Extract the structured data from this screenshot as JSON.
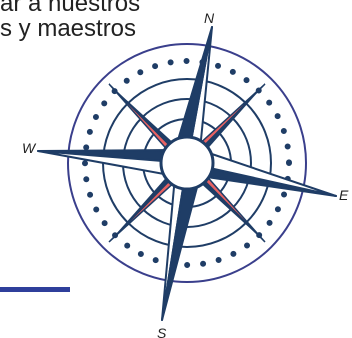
{
  "heading": {
    "line1": "ar a nuestros",
    "line2": "s y maestros"
  },
  "compass": {
    "north": "N",
    "south": "S",
    "east": "E",
    "west": "W"
  },
  "colors": {
    "navy": "#1f3d66",
    "coral": "#e86262",
    "ring": "#3a3f8c",
    "accent": "#2f3f9b"
  }
}
